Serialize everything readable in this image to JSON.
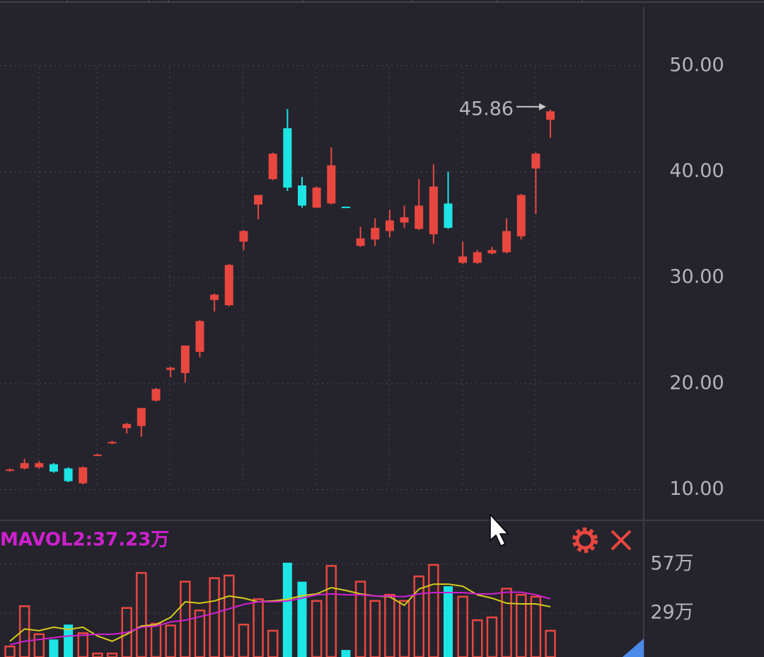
{
  "chart_data": [
    {
      "type": "candlestick",
      "open": [
        11.8,
        12.0,
        12.1,
        12.4,
        12.0,
        10.6,
        13.2,
        14.4,
        15.8,
        16.0,
        18.4,
        21.3,
        21.0,
        23.0,
        27.9,
        27.4,
        33.4,
        36.9,
        39.3,
        44.1,
        38.7,
        36.6,
        37.0,
        36.7,
        33.0,
        33.6,
        34.4,
        35.2,
        34.6,
        34.1,
        37.0,
        31.4,
        31.4,
        32.3,
        32.4,
        33.9,
        40.3,
        44.9
      ],
      "close": [
        11.9,
        12.5,
        12.5,
        11.7,
        10.8,
        12.1,
        13.3,
        14.5,
        16.2,
        17.7,
        19.5,
        21.5,
        23.6,
        25.9,
        28.4,
        31.2,
        34.4,
        37.8,
        41.7,
        38.5,
        36.8,
        38.5,
        40.6,
        36.6,
        33.7,
        34.7,
        35.4,
        35.7,
        36.8,
        38.6,
        34.7,
        32.0,
        32.4,
        32.6,
        34.4,
        37.8,
        41.7,
        45.7
      ],
      "high": [
        12.0,
        12.9,
        12.7,
        12.5,
        12.1,
        12.2,
        13.4,
        14.6,
        16.3,
        17.7,
        19.6,
        21.6,
        23.6,
        26.0,
        28.5,
        31.3,
        34.5,
        37.8,
        41.8,
        45.9,
        39.5,
        38.6,
        42.3,
        36.7,
        34.8,
        35.6,
        36.4,
        36.8,
        39.3,
        40.7,
        40.0,
        33.4,
        32.6,
        32.9,
        35.6,
        37.9,
        41.8,
        45.86
      ],
      "low": [
        11.7,
        11.9,
        12.0,
        11.6,
        10.7,
        10.5,
        13.2,
        14.3,
        15.3,
        15.0,
        18.3,
        20.6,
        20.1,
        22.5,
        26.8,
        27.3,
        32.6,
        35.5,
        39.2,
        38.2,
        36.6,
        36.6,
        36.9,
        36.6,
        32.9,
        33.0,
        33.8,
        34.7,
        34.5,
        33.2,
        34.6,
        31.3,
        31.3,
        32.2,
        32.3,
        33.6,
        36.0,
        43.2
      ],
      "up_color": "#e8473f",
      "down_color": "#1de5e5",
      "ylim": [
        7.1,
        56.2
      ],
      "yticks": [
        {
          "value": 10,
          "label": "10.00"
        },
        {
          "value": 20,
          "label": "20.00"
        },
        {
          "value": 30,
          "label": "30.00"
        },
        {
          "value": 40,
          "label": "40.00"
        },
        {
          "value": 50,
          "label": "50.00"
        }
      ],
      "grid": true
    },
    {
      "type": "volume",
      "title": "MAVOL2:37.23万",
      "values": [
        10,
        33,
        17,
        14,
        22.5,
        17.6,
        6,
        6,
        32,
        52,
        23,
        22,
        47,
        30.6,
        49,
        50.5,
        22.5,
        37,
        19,
        57.8,
        47,
        36,
        56,
        8,
        47,
        36,
        39.5,
        36,
        50,
        56.6,
        44.4,
        38.4,
        25,
        26.6,
        43,
        39.5,
        38.4,
        19
      ],
      "ylim": [
        4,
        82
      ],
      "yticks": [
        {
          "value": 29,
          "label": "29万"
        },
        {
          "value": 57,
          "label": "57万"
        }
      ],
      "grid": true,
      "series": [
        {
          "color": "#d4cc1a",
          "values": [
            13,
            20,
            19,
            21,
            19.7,
            21,
            16,
            13,
            17,
            21.7,
            22.5,
            26.6,
            35.5,
            34.7,
            36,
            38.8,
            37.6,
            35.5,
            36,
            37,
            39,
            40,
            43.6,
            42,
            40,
            38.8,
            38.4,
            33.5,
            42.8,
            45.6,
            45.6,
            44.4,
            39.5,
            37.6,
            34.7,
            34.3,
            34.3,
            32.7
          ]
        },
        {
          "color": "#d020d0",
          "values": [
            11,
            13,
            14,
            15,
            16,
            16.4,
            17,
            17,
            18,
            21,
            21.7,
            24,
            25,
            27,
            29,
            31.5,
            34,
            35.5,
            35.5,
            36,
            37.6,
            39.5,
            40,
            39.5,
            39.5,
            38.8,
            38.8,
            38.4,
            40,
            40.8,
            40.8,
            40.8,
            40,
            40,
            41,
            41,
            39.5,
            37.23
          ]
        }
      ]
    }
  ]
}
